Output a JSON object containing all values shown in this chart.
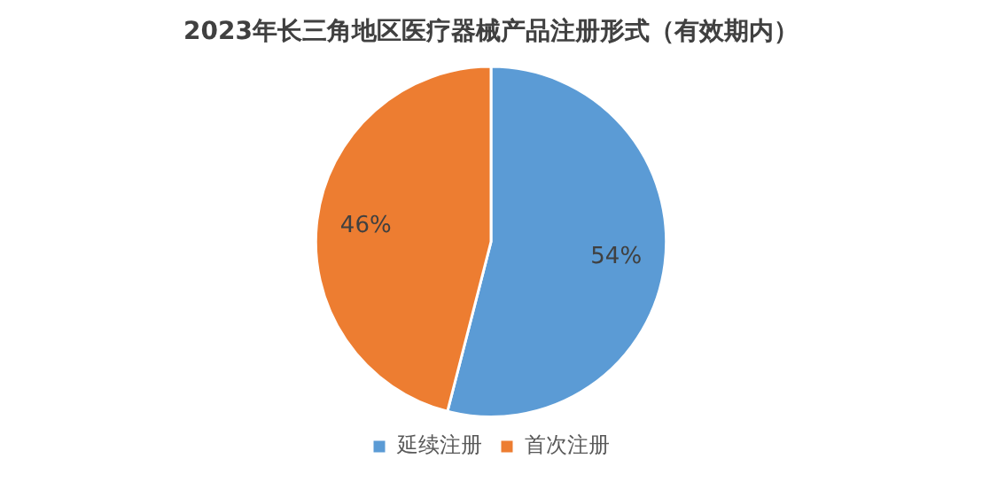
{
  "chart_data": {
    "type": "pie",
    "title": "2023年长三角地区医疗器械产品注册形式（有效期内）",
    "categories": [
      "延续注册",
      "首次注册"
    ],
    "values": [
      54,
      46
    ],
    "colors": [
      "#5b9bd5",
      "#ed7d31"
    ],
    "value_labels": [
      "54%",
      "46%"
    ],
    "legend": "bottom"
  }
}
